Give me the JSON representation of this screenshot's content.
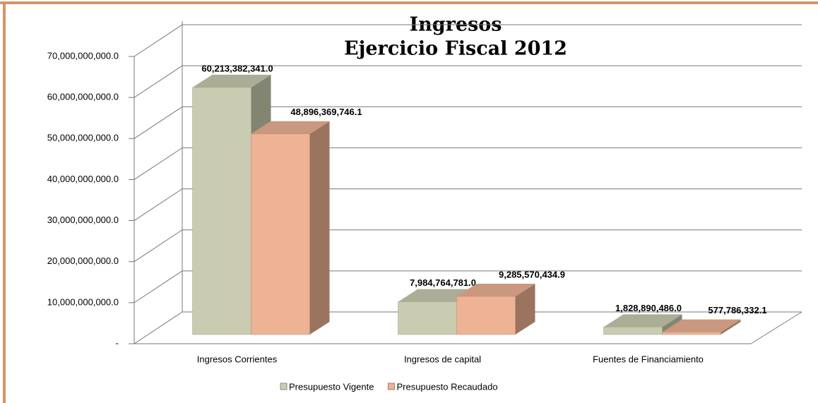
{
  "chart_data": {
    "type": "bar3d",
    "title": [
      "Ingresos",
      "Ejercicio Fiscal 2012"
    ],
    "categories": [
      "Ingresos Corrientes",
      "Ingresos de capital",
      "Fuentes de Financiamiento"
    ],
    "series": [
      {
        "name": "Presupuesto Vigente",
        "color": "#c9ccb1",
        "values": [
          60213382341.0,
          7984764781.0,
          1828890486.0
        ],
        "value_labels": [
          "60,213,382,341.0",
          "7,984,764,781.0",
          "1,828,890,486.0"
        ]
      },
      {
        "name": "Presupuesto Recaudado",
        "color": "#eeb394",
        "values": [
          48896369746.1,
          9285570434.9,
          577786332.1
        ],
        "value_labels": [
          "48,896,369,746.1",
          "9,285,570,434.9",
          "577,786,332.1"
        ]
      }
    ],
    "ylim": [
      0,
      70000000000
    ],
    "yticks": [
      {
        "value": 0,
        "label": "-"
      },
      {
        "value": 10000000000,
        "label": "10,000,000,000.0"
      },
      {
        "value": 20000000000,
        "label": "20,000,000,000.0"
      },
      {
        "value": 30000000000,
        "label": "30,000,000,000.0"
      },
      {
        "value": 40000000000,
        "label": "40,000,000,000.0"
      },
      {
        "value": 50000000000,
        "label": "50,000,000,000.0"
      },
      {
        "value": 60000000000,
        "label": "60,000,000,000.0"
      },
      {
        "value": 70000000000,
        "label": "70,000,000,000.0"
      }
    ],
    "grid": true,
    "legend": "bottom"
  }
}
